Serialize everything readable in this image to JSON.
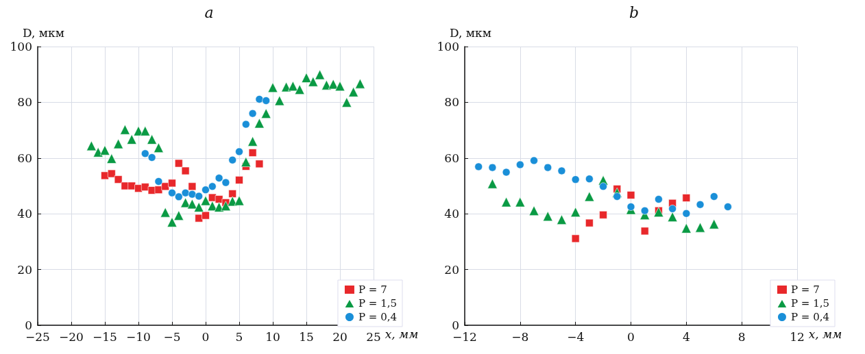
{
  "chart_data": [
    {
      "type": "scatter",
      "title": "a",
      "xlabel": "x, мм",
      "ylabel": "D, мкм",
      "xlim": [
        -25,
        25
      ],
      "xticks": [
        -25,
        -20,
        -15,
        -10,
        -5,
        0,
        5,
        10,
        15,
        20,
        25
      ],
      "ylim": [
        0,
        100
      ],
      "yticks": [
        0,
        20,
        40,
        60,
        80,
        100
      ],
      "grid": true,
      "legend": "bottom right",
      "series": [
        {
          "name": "P = 7",
          "color": "#e8282b",
          "marker": "square",
          "x": [
            -15,
            -14,
            -13,
            -12,
            -11,
            -10,
            -9,
            -8,
            -7,
            -6,
            -5,
            -4,
            -3,
            -2,
            -1,
            0,
            1,
            2,
            3,
            4,
            5,
            6,
            7,
            8
          ],
          "values": [
            53.7,
            54.4,
            52.3,
            50.0,
            50.0,
            49.1,
            49.6,
            48.4,
            48.6,
            49.8,
            51.0,
            58.1,
            55.4,
            49.8,
            38.4,
            39.4,
            45.8,
            45.2,
            44.0,
            47.2,
            52.1,
            57.0,
            61.9,
            57.9
          ]
        },
        {
          "name": "P = 1,5",
          "color": "#0a9a44",
          "marker": "triangle",
          "x": [
            -17,
            -16,
            -15,
            -14,
            -13,
            -12,
            -11,
            -10,
            -9,
            -8,
            -7,
            -6,
            -5,
            -4,
            -3,
            -2,
            -1,
            0,
            1,
            2,
            3,
            4,
            5,
            6,
            7,
            8,
            9,
            10,
            11,
            12,
            13,
            14,
            15,
            16,
            17,
            18,
            19,
            20,
            21,
            22,
            23
          ],
          "values": [
            64.4,
            62.1,
            62.8,
            59.8,
            65.1,
            70.2,
            66.7,
            69.7,
            69.7,
            66.7,
            63.7,
            40.5,
            37.0,
            39.4,
            44.0,
            43.5,
            42.4,
            44.7,
            42.8,
            42.4,
            42.8,
            44.5,
            44.7,
            58.6,
            66.0,
            72.5,
            76.0,
            85.3,
            80.6,
            85.5,
            85.8,
            84.6,
            88.8,
            87.4,
            89.9,
            86.2,
            86.5,
            85.8,
            80.0,
            83.7,
            86.7
          ]
        },
        {
          "name": "P = 0,4",
          "color": "#1a8fd8",
          "marker": "circle",
          "x": [
            -9,
            -8,
            -7,
            -5,
            -4,
            -3,
            -2,
            -1,
            0,
            1,
            2,
            3,
            4,
            5,
            6,
            7,
            8,
            9
          ],
          "values": [
            61.6,
            60.2,
            51.6,
            47.5,
            46.1,
            47.5,
            47.0,
            46.3,
            48.6,
            49.8,
            52.8,
            51.2,
            59.3,
            62.3,
            72.1,
            76.0,
            81.1,
            80.6
          ]
        }
      ]
    },
    {
      "type": "scatter",
      "title": "b",
      "xlabel": "x, мм",
      "ylabel": "D, мкм",
      "xlim": [
        -12,
        12
      ],
      "xticks": [
        -12,
        -8,
        -4,
        0,
        4,
        8,
        12
      ],
      "ylim": [
        0,
        100
      ],
      "yticks": [
        0,
        20,
        40,
        60,
        80,
        100
      ],
      "grid": true,
      "legend": "bottom right",
      "series": [
        {
          "name": "P = 7",
          "color": "#e8282b",
          "marker": "square",
          "x": [
            -4,
            -3,
            -2,
            -1,
            0,
            1,
            2,
            3,
            4
          ],
          "values": [
            31.1,
            36.7,
            39.6,
            48.9,
            46.7,
            33.8,
            41.1,
            43.8,
            45.7
          ]
        },
        {
          "name": "P = 1,5",
          "color": "#0a9a44",
          "marker": "triangle",
          "x": [
            -10,
            -9,
            -8,
            -7,
            -6,
            -5,
            -4,
            -3,
            -2,
            -1,
            0,
            1,
            2,
            3,
            4,
            5,
            6
          ],
          "values": [
            50.8,
            44.2,
            44.2,
            41.1,
            39.1,
            37.9,
            40.6,
            46.2,
            52.0,
            47.6,
            41.5,
            39.6,
            40.6,
            38.9,
            34.8,
            35.1,
            36.3
          ]
        },
        {
          "name": "P = 0,4",
          "color": "#1a8fd8",
          "marker": "circle",
          "x": [
            -11,
            -10,
            -9,
            -8,
            -7,
            -6,
            -5,
            -4,
            -3,
            -2,
            -1,
            0,
            1,
            2,
            3,
            4,
            5,
            6,
            7
          ],
          "values": [
            56.9,
            56.6,
            54.9,
            57.6,
            59.1,
            56.6,
            55.4,
            52.3,
            52.5,
            49.8,
            46.2,
            42.5,
            41.1,
            45.2,
            41.8,
            40.1,
            43.3,
            46.2,
            42.5
          ]
        }
      ]
    }
  ]
}
